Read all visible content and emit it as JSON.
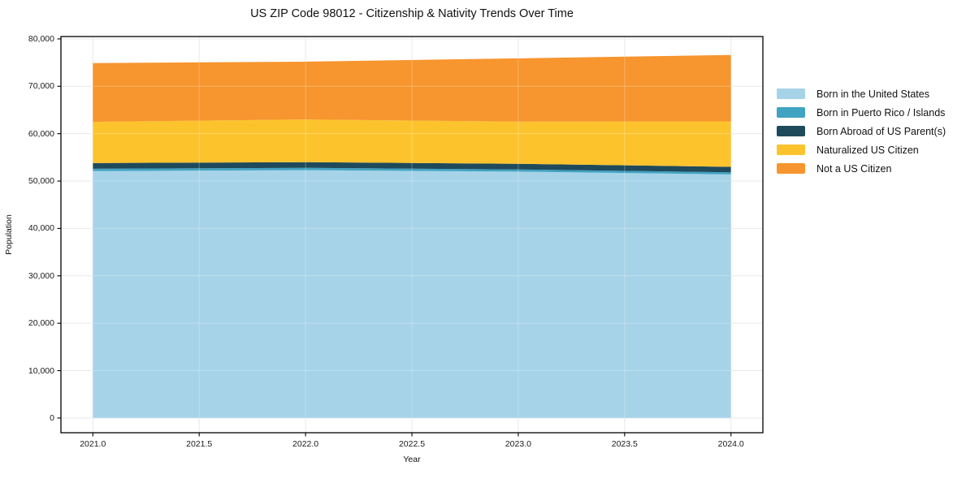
{
  "chart_data": {
    "type": "area",
    "stacked": true,
    "title": "US ZIP Code 98012 - Citizenship & Nativity Trends Over Time",
    "xlabel": "Year",
    "ylabel": "Population",
    "x": [
      2021,
      2022,
      2023,
      2024
    ],
    "series": [
      {
        "name": "Born in the United States",
        "color": "#a6d3e8",
        "values": [
          52100,
          52300,
          52000,
          51400
        ]
      },
      {
        "name": "Born in Puerto Rico / Islands",
        "color": "#41a3c2",
        "values": [
          500,
          500,
          450,
          450
        ]
      },
      {
        "name": "Born Abroad of US Parent(s)",
        "color": "#1f4a5c",
        "values": [
          1200,
          1200,
          1200,
          1150
        ]
      },
      {
        "name": "Naturalized US Citizen",
        "color": "#fcc32d",
        "values": [
          8700,
          9000,
          8900,
          9600
        ]
      },
      {
        "name": "Not a US Citizen",
        "color": "#f7952e",
        "values": [
          12400,
          12200,
          13350,
          14000
        ]
      }
    ],
    "totals": [
      74900,
      75200,
      75900,
      76600
    ],
    "xticks": [
      2021.0,
      2021.5,
      2022.0,
      2022.5,
      2023.0,
      2023.5,
      2024.0
    ],
    "xtick_labels": [
      "2021.0",
      "2021.5",
      "2022.0",
      "2022.5",
      "2023.0",
      "2023.5",
      "2024.0"
    ],
    "yticks": [
      0,
      10000,
      20000,
      30000,
      40000,
      50000,
      60000,
      70000,
      80000
    ],
    "ytick_labels": [
      "0",
      "10,000",
      "20,000",
      "30,000",
      "40,000",
      "50,000",
      "60,000",
      "70,000",
      "80,000"
    ],
    "xlim": [
      2020.85,
      2024.15
    ],
    "ylim": [
      -3100,
      80500
    ],
    "grid": true,
    "grid_color": "#e9e9e9",
    "spine_color": "#000000",
    "legend_position": "right outside"
  }
}
